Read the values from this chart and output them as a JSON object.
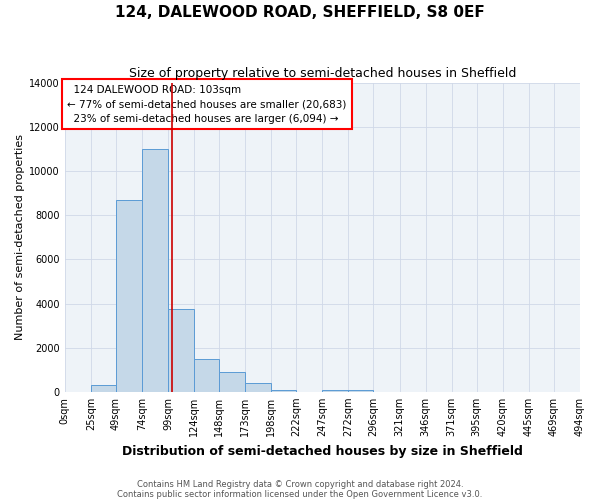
{
  "title": "124, DALEWOOD ROAD, SHEFFIELD, S8 0EF",
  "subtitle": "Size of property relative to semi-detached houses in Sheffield",
  "xlabel": "Distribution of semi-detached houses by size in Sheffield",
  "ylabel": "Number of semi-detached properties",
  "annotation_title": "124 DALEWOOD ROAD: 103sqm",
  "annotation_line1": "← 77% of semi-detached houses are smaller (20,683)",
  "annotation_line2": "23% of semi-detached houses are larger (6,094) →",
  "property_value": 103,
  "bin_edges": [
    0,
    25,
    49,
    74,
    99,
    124,
    148,
    173,
    198,
    222,
    247,
    272,
    296,
    321,
    346,
    371,
    395,
    420,
    445,
    469,
    494
  ],
  "bar_heights": [
    0,
    300,
    8700,
    11000,
    3750,
    1500,
    900,
    400,
    100,
    0,
    100,
    100,
    0,
    0,
    0,
    0,
    0,
    0,
    0,
    0
  ],
  "bar_color": "#c5d8e8",
  "bar_edge_color": "#5b9bd5",
  "vline_color": "#cc0000",
  "vline_x": 103,
  "ylim": [
    0,
    14000
  ],
  "yticks": [
    0,
    2000,
    4000,
    6000,
    8000,
    10000,
    12000,
    14000
  ],
  "grid_color": "#d0d8e8",
  "bg_color": "#eef3f8",
  "footer": "Contains HM Land Registry data © Crown copyright and database right 2024.\nContains public sector information licensed under the Open Government Licence v3.0.",
  "title_fontsize": 11,
  "subtitle_fontsize": 9,
  "xlabel_fontsize": 9,
  "ylabel_fontsize": 8,
  "tick_fontsize": 7,
  "footer_fontsize": 6,
  "annotation_fontsize": 7.5
}
